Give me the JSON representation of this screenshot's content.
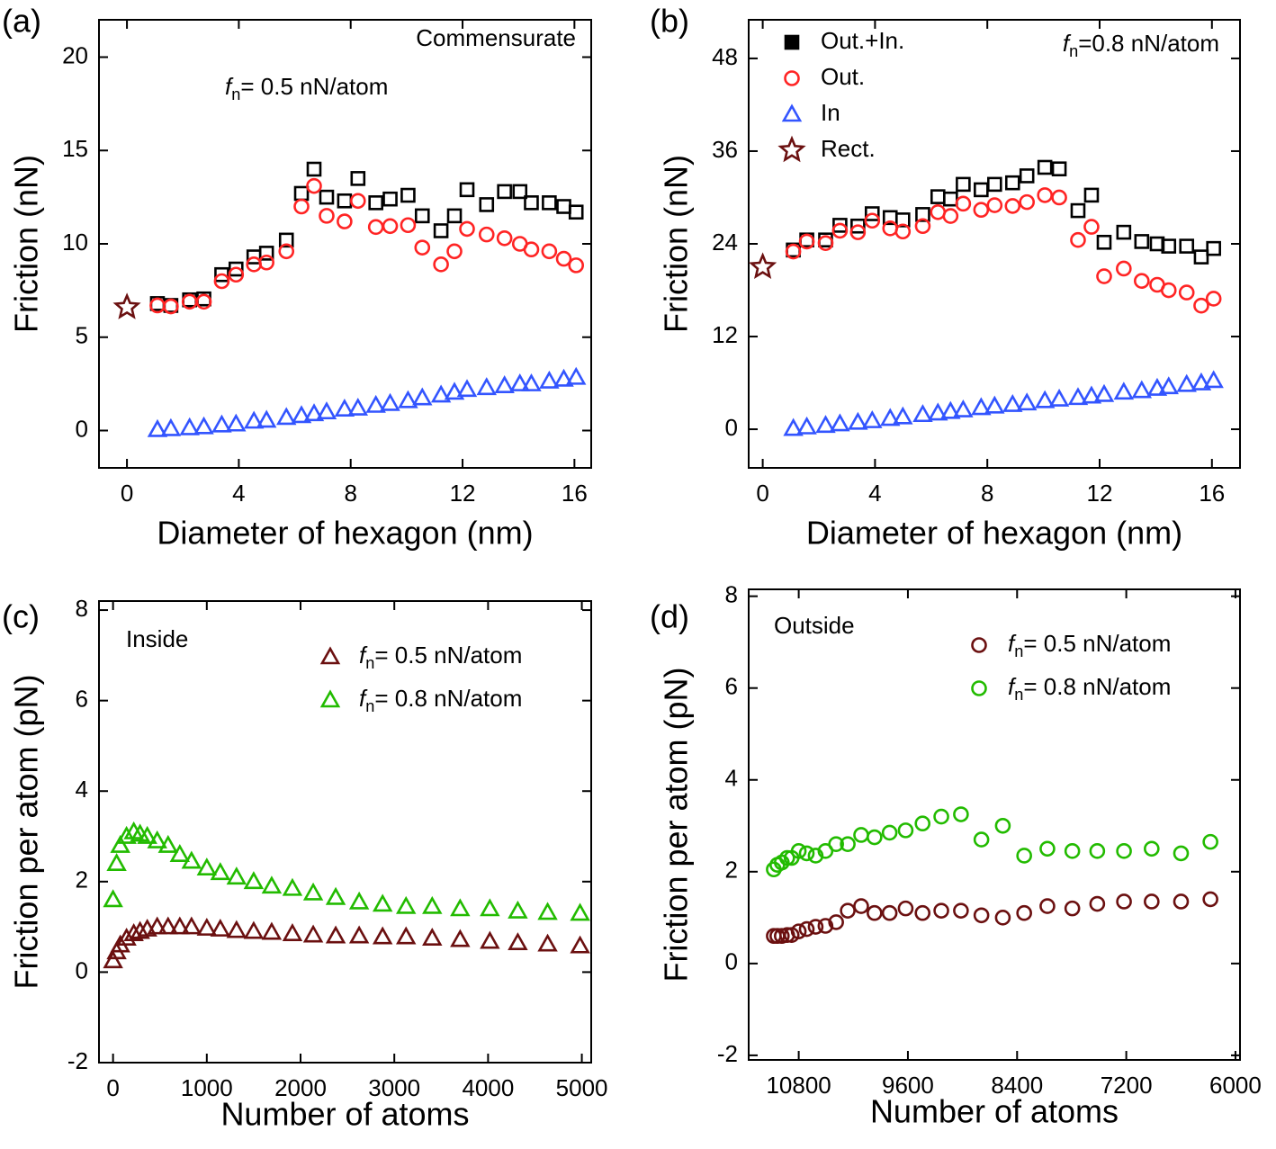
{
  "chart_data": [
    {
      "type": "scatter",
      "label": "(a)",
      "xlabel": "Diameter of hexagon (nm)",
      "ylabel": "Friction (nN)",
      "xlim": [
        -1,
        16.6
      ],
      "ylim": [
        -2,
        22
      ],
      "xticks": [
        0,
        4,
        8,
        12,
        16
      ],
      "yticks": [
        0,
        5,
        10,
        15,
        20
      ],
      "annotations": [
        "Commensurate",
        "fn= 0.5 nN/atom"
      ],
      "series": [
        {
          "color": "#000000",
          "marker": "square",
          "x": [
            1.09,
            1.57,
            2.24,
            2.75,
            3.39,
            3.9,
            4.54,
            4.99,
            5.7,
            6.24,
            6.69,
            7.14,
            7.78,
            8.26,
            8.9,
            9.41,
            10.05,
            10.56,
            11.23,
            11.71,
            12.16,
            12.86,
            13.5,
            14.05,
            14.46,
            15.1,
            15.62,
            16.06
          ],
          "values": [
            6.8,
            6.7,
            7.0,
            7.05,
            8.35,
            8.65,
            9.3,
            9.5,
            10.2,
            12.7,
            14.0,
            12.5,
            12.3,
            13.5,
            12.2,
            12.4,
            12.6,
            11.5,
            10.7,
            11.5,
            12.9,
            12.1,
            12.8,
            12.8,
            12.2,
            12.2,
            12.0,
            11.7
          ]
        },
        {
          "color": "#ff2424",
          "marker": "circle",
          "x": [
            1.09,
            1.57,
            2.24,
            2.75,
            3.39,
            3.9,
            4.54,
            4.99,
            5.7,
            6.24,
            6.69,
            7.14,
            7.78,
            8.26,
            8.9,
            9.41,
            10.05,
            10.56,
            11.23,
            11.71,
            12.16,
            12.86,
            13.5,
            14.05,
            14.46,
            15.1,
            15.62,
            16.06
          ],
          "values": [
            6.7,
            6.65,
            6.9,
            6.9,
            8.0,
            8.35,
            8.9,
            9.0,
            9.6,
            12.0,
            13.1,
            11.5,
            11.2,
            12.3,
            10.9,
            10.95,
            11.0,
            9.8,
            8.9,
            9.6,
            10.8,
            10.5,
            10.3,
            10.0,
            9.7,
            9.6,
            9.2,
            8.85
          ]
        },
        {
          "color": "#3355ff",
          "marker": "triangle",
          "x": [
            1.09,
            1.57,
            2.24,
            2.75,
            3.39,
            3.9,
            4.54,
            4.99,
            5.7,
            6.24,
            6.69,
            7.14,
            7.78,
            8.26,
            8.9,
            9.41,
            10.05,
            10.56,
            11.23,
            11.71,
            12.16,
            12.86,
            13.5,
            14.05,
            14.46,
            15.1,
            15.62,
            16.06
          ],
          "values": [
            0.05,
            0.1,
            0.15,
            0.2,
            0.3,
            0.35,
            0.5,
            0.55,
            0.7,
            0.8,
            0.9,
            1.0,
            1.15,
            1.2,
            1.35,
            1.45,
            1.6,
            1.75,
            1.9,
            2.05,
            2.2,
            2.3,
            2.4,
            2.5,
            2.5,
            2.65,
            2.75,
            2.85
          ]
        },
        {
          "color": "#6b1010",
          "marker": "star",
          "x": [
            0
          ],
          "values": [
            6.6
          ]
        }
      ]
    },
    {
      "type": "scatter",
      "label": "(b)",
      "xlabel": "Diameter of hexagon (nm)",
      "ylabel": "Friction (nN)",
      "xlim": [
        -0.5,
        17
      ],
      "ylim": [
        -5,
        53
      ],
      "xticks": [
        0,
        4,
        8,
        12,
        16
      ],
      "yticks": [
        0,
        12,
        24,
        36,
        48
      ],
      "annotations": [
        "fn=0.8 nN/atom"
      ],
      "legend": "upper left",
      "series": [
        {
          "name": "Out.+In.",
          "color": "#000000",
          "marker": "square",
          "x": [
            1.09,
            1.57,
            2.24,
            2.75,
            3.39,
            3.9,
            4.54,
            4.99,
            5.7,
            6.24,
            6.69,
            7.14,
            7.78,
            8.26,
            8.9,
            9.41,
            10.05,
            10.56,
            11.23,
            11.71,
            12.16,
            12.86,
            13.5,
            14.05,
            14.46,
            15.1,
            15.62,
            16.06
          ],
          "values": [
            23.2,
            24.5,
            24.5,
            26.4,
            26.3,
            27.9,
            27.4,
            27.1,
            27.8,
            30.1,
            29.8,
            31.7,
            31.0,
            31.7,
            31.9,
            32.8,
            33.9,
            33.7,
            28.3,
            30.3,
            24.2,
            25.5,
            24.3,
            24.0,
            23.7,
            23.7,
            22.3,
            23.4
          ]
        },
        {
          "name": "Out.",
          "color": "#ff2424",
          "marker": "circle",
          "x": [
            1.09,
            1.57,
            2.24,
            2.75,
            3.39,
            3.9,
            4.54,
            4.99,
            5.7,
            6.24,
            6.69,
            7.14,
            7.78,
            8.26,
            8.9,
            9.41,
            10.05,
            10.56,
            11.23,
            11.71,
            12.16,
            12.86,
            13.5,
            14.05,
            14.46,
            15.1,
            15.62,
            16.06
          ],
          "values": [
            23.0,
            24.3,
            24.1,
            25.7,
            25.5,
            27.0,
            26.0,
            25.6,
            26.3,
            28.1,
            27.6,
            29.2,
            28.4,
            29.0,
            28.9,
            29.4,
            30.3,
            30.0,
            24.5,
            26.2,
            19.8,
            20.8,
            19.2,
            18.7,
            18.0,
            17.7,
            16.0,
            16.9
          ]
        },
        {
          "name": "In",
          "color": "#3355ff",
          "marker": "triangle",
          "x": [
            1.09,
            1.57,
            2.24,
            2.75,
            3.39,
            3.9,
            4.54,
            4.99,
            5.7,
            6.24,
            6.69,
            7.14,
            7.78,
            8.26,
            8.9,
            9.41,
            10.05,
            10.56,
            11.23,
            11.71,
            12.16,
            12.86,
            13.5,
            14.05,
            14.46,
            15.1,
            15.62,
            16.06
          ],
          "values": [
            0.1,
            0.3,
            0.5,
            0.7,
            0.9,
            1.1,
            1.4,
            1.6,
            1.9,
            2.1,
            2.3,
            2.5,
            2.8,
            3.0,
            3.2,
            3.4,
            3.7,
            3.9,
            4.1,
            4.3,
            4.5,
            4.8,
            5.0,
            5.3,
            5.5,
            5.8,
            6.0,
            6.3
          ]
        },
        {
          "name": "Rect.",
          "color": "#6b1010",
          "marker": "star",
          "x": [
            0
          ],
          "values": [
            21
          ]
        }
      ]
    },
    {
      "type": "scatter",
      "label": "(c)",
      "xlabel": "Number of atoms",
      "ylabel": "Friction per atom (pN)",
      "xlim": [
        -150,
        5100
      ],
      "ylim": [
        -2,
        8.2
      ],
      "xticks": [
        0,
        1000,
        2000,
        3000,
        4000,
        5000
      ],
      "yticks": [
        -2,
        0,
        2,
        4,
        6,
        8
      ],
      "annotations": [
        "Inside"
      ],
      "legend": "upper right",
      "series": [
        {
          "name": "fn= 0.5 nN/atom",
          "color": "#6b1010",
          "marker": "triangle",
          "x": [
            0,
            38,
            77,
            144,
            221,
            288,
            365,
            471,
            587,
            712,
            837,
            1000,
            1144,
            1317,
            1500,
            1692,
            1913,
            2135,
            2375,
            2625,
            2875,
            3125,
            3404,
            3702,
            4019,
            4317,
            4635,
            4981
          ],
          "values": [
            0.25,
            0.45,
            0.6,
            0.75,
            0.85,
            0.9,
            0.95,
            1.0,
            1.0,
            1.0,
            1.0,
            0.97,
            0.95,
            0.92,
            0.9,
            0.88,
            0.85,
            0.82,
            0.8,
            0.8,
            0.78,
            0.78,
            0.75,
            0.72,
            0.68,
            0.65,
            0.62,
            0.58
          ]
        },
        {
          "name": "fn= 0.8 nN/atom",
          "color": "#22bb00",
          "marker": "triangle",
          "x": [
            0,
            38,
            77,
            144,
            221,
            288,
            365,
            471,
            587,
            712,
            837,
            1000,
            1144,
            1317,
            1500,
            1692,
            1913,
            2135,
            2375,
            2625,
            2875,
            3125,
            3404,
            3702,
            4019,
            4317,
            4635,
            4981
          ],
          "values": [
            1.6,
            2.4,
            2.8,
            3.0,
            3.1,
            3.05,
            3.0,
            2.9,
            2.8,
            2.6,
            2.45,
            2.3,
            2.2,
            2.1,
            2.0,
            1.9,
            1.85,
            1.75,
            1.65,
            1.55,
            1.5,
            1.45,
            1.45,
            1.4,
            1.4,
            1.35,
            1.32,
            1.3
          ]
        }
      ]
    },
    {
      "type": "scatter",
      "label": "(d)",
      "xlabel": "Number of atoms",
      "ylabel": "Friction per atom (pN)",
      "xlim": [
        11350,
        5950
      ],
      "ylim": [
        -2.1,
        8.15
      ],
      "xticks": [
        10800,
        9600,
        8400,
        7200,
        6000
      ],
      "yticks": [
        -2,
        0,
        2,
        4,
        6,
        8
      ],
      "annotations": [
        "Outside"
      ],
      "legend": "upper right",
      "series": [
        {
          "name": "fn= 0.5 nN/atom",
          "color": "#6b1010",
          "marker": "circle",
          "x": [
            11074,
            11035,
            10986,
            10927,
            10878,
            10800,
            10712,
            10614,
            10506,
            10389,
            10261,
            10114,
            9967,
            9801,
            9625,
            9439,
            9233,
            9017,
            8792,
            8557,
            8322,
            8067,
            7793,
            7519,
            7225,
            6921,
            6598,
            6275
          ],
          "values": [
            0.6,
            0.6,
            0.6,
            0.62,
            0.62,
            0.7,
            0.75,
            0.8,
            0.82,
            0.9,
            1.15,
            1.25,
            1.1,
            1.1,
            1.2,
            1.1,
            1.15,
            1.15,
            1.05,
            1.0,
            1.1,
            1.25,
            1.2,
            1.3,
            1.35,
            1.35,
            1.35,
            1.4
          ]
        },
        {
          "name": "fn= 0.8 nN/atom",
          "color": "#22bb00",
          "marker": "circle",
          "x": [
            11074,
            11035,
            10986,
            10927,
            10878,
            10800,
            10712,
            10614,
            10506,
            10389,
            10261,
            10114,
            9967,
            9801,
            9625,
            9439,
            9233,
            9017,
            8792,
            8557,
            8322,
            8067,
            7793,
            7519,
            7225,
            6921,
            6598,
            6275
          ],
          "values": [
            2.05,
            2.15,
            2.2,
            2.3,
            2.3,
            2.45,
            2.4,
            2.35,
            2.45,
            2.6,
            2.6,
            2.8,
            2.75,
            2.85,
            2.9,
            3.05,
            3.2,
            3.25,
            2.7,
            3.0,
            2.35,
            2.5,
            2.45,
            2.45,
            2.45,
            2.5,
            2.4,
            2.65
          ]
        }
      ]
    }
  ]
}
